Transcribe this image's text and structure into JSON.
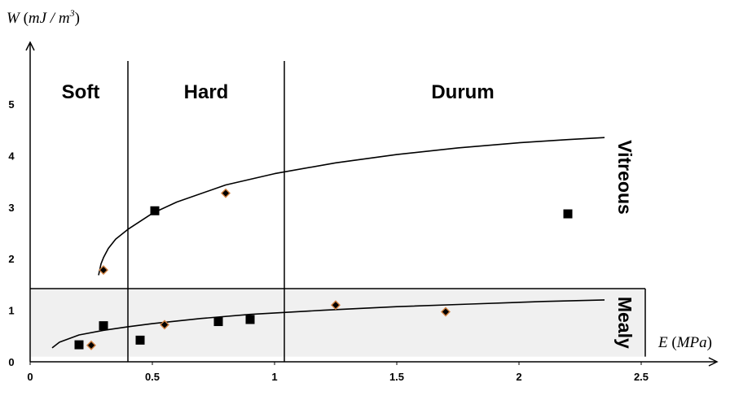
{
  "chart_data": {
    "type": "scatter",
    "title": "",
    "ylabel": {
      "symbol": "W",
      "unit_open": " (",
      "unit": "mJ / m",
      "exponent": "3",
      "unit_close": ")"
    },
    "xlabel": {
      "symbol": "E",
      "unit_open": " (",
      "unit": "MPa",
      "unit_close": ")"
    },
    "xlim": [
      0,
      2.5
    ],
    "ylim": [
      0,
      5
    ],
    "x_ticks": [
      "0",
      "0.5",
      "1",
      "1.5",
      "2",
      "2.5"
    ],
    "y_ticks": [
      "0",
      "1",
      "2",
      "3",
      "4",
      "5"
    ],
    "grid": false,
    "regions": [
      {
        "label": "Soft",
        "x_range": [
          0,
          0.4
        ]
      },
      {
        "label": "Hard",
        "x_range": [
          0.4,
          1.04
        ]
      },
      {
        "label": "Durum",
        "x_range": [
          1.04,
          2.5
        ]
      }
    ],
    "zones": [
      {
        "label": "Vitreous",
        "y_range": [
          1.42,
          5
        ]
      },
      {
        "label": "Mealy",
        "y_range": [
          0.1,
          1.42
        ],
        "shaded": true,
        "shade_color": "#f0f0f0"
      }
    ],
    "series": [
      {
        "marker": "square",
        "color": "#000000",
        "x": [
          0.2,
          0.3,
          0.45,
          0.51,
          0.77,
          0.9,
          2.2
        ],
        "y": [
          0.33,
          0.7,
          0.42,
          2.93,
          0.78,
          0.82,
          2.87
        ]
      },
      {
        "marker": "diamond",
        "color": "#000000",
        "edge_color": "#d08040",
        "x": [
          0.25,
          0.3,
          0.55,
          0.8,
          1.25,
          1.7
        ],
        "y": [
          0.32,
          1.78,
          0.72,
          3.27,
          1.1,
          0.97
        ]
      }
    ],
    "trend_lines": [
      {
        "x": [
          0.28,
          0.29,
          0.3,
          0.32,
          0.35,
          0.4,
          0.5,
          0.6,
          0.8,
          1.0,
          1.25,
          1.5,
          1.75,
          2.0,
          2.2,
          2.35
        ],
        "y": [
          1.68,
          1.9,
          2.02,
          2.2,
          2.38,
          2.57,
          2.88,
          3.1,
          3.43,
          3.65,
          3.86,
          4.02,
          4.15,
          4.25,
          4.31,
          4.35
        ]
      },
      {
        "x": [
          0.09,
          0.12,
          0.2,
          0.3,
          0.4,
          0.5,
          0.7,
          0.9,
          1.2,
          1.5,
          1.8,
          2.1,
          2.35
        ],
        "y": [
          0.27,
          0.38,
          0.52,
          0.61,
          0.68,
          0.74,
          0.84,
          0.92,
          1.0,
          1.07,
          1.12,
          1.17,
          1.2
        ]
      }
    ]
  }
}
